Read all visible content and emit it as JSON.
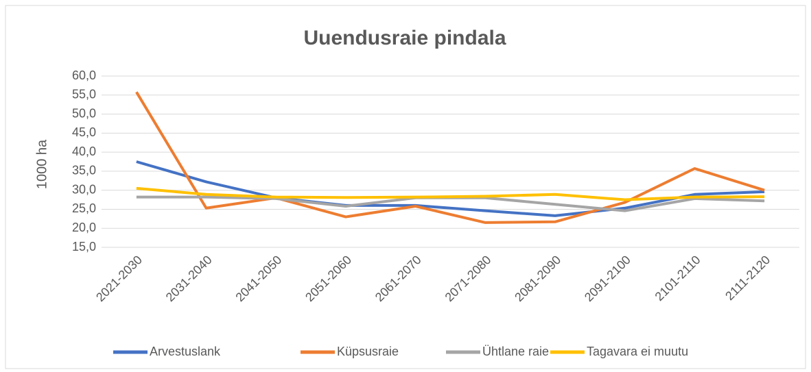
{
  "chart_data": {
    "type": "line",
    "title": "Uuendusraie pindala",
    "y_label": "1000 ha",
    "categories": [
      "2021-2030",
      "2031-2040",
      "2041-2050",
      "2051-2060",
      "2061-2070",
      "2071-2080",
      "2081-2090",
      "2091-2100",
      "2101-2110",
      "2111-2120"
    ],
    "series": [
      {
        "name": "Arvestuslank",
        "color": "#4472c4",
        "values": [
          37.5,
          32.2,
          28.0,
          26.0,
          26.0,
          24.6,
          23.3,
          25.3,
          28.9,
          29.6
        ]
      },
      {
        "name": "Küpsusraie",
        "color": "#ed7d31",
        "values": [
          55.8,
          25.3,
          28.0,
          23.0,
          25.8,
          21.5,
          21.7,
          26.8,
          35.7,
          30.0
        ]
      },
      {
        "name": "Ühtlane raie",
        "color": "#a5a5a5",
        "values": [
          28.2,
          28.2,
          27.8,
          25.8,
          28.0,
          28.0,
          26.3,
          24.6,
          27.8,
          27.2
        ]
      },
      {
        "name": "Tagavara ei muutu",
        "color": "#ffc000",
        "values": [
          30.5,
          28.9,
          28.2,
          28.1,
          28.2,
          28.4,
          28.9,
          27.5,
          28.2,
          28.3
        ]
      }
    ],
    "ylim": [
      15,
      60
    ],
    "yticks": [
      {
        "value": 15,
        "label": "15,0"
      },
      {
        "value": 20,
        "label": "20,0"
      },
      {
        "value": 25,
        "label": "25,0"
      },
      {
        "value": 30,
        "label": "30,0"
      },
      {
        "value": 35,
        "label": "35,0"
      },
      {
        "value": 40,
        "label": "40,0"
      },
      {
        "value": 45,
        "label": "45,0"
      },
      {
        "value": 50,
        "label": "50,0"
      },
      {
        "value": 55,
        "label": "55,0"
      },
      {
        "value": 60,
        "label": "60,0"
      }
    ],
    "grid": true,
    "legend": "bottom"
  }
}
